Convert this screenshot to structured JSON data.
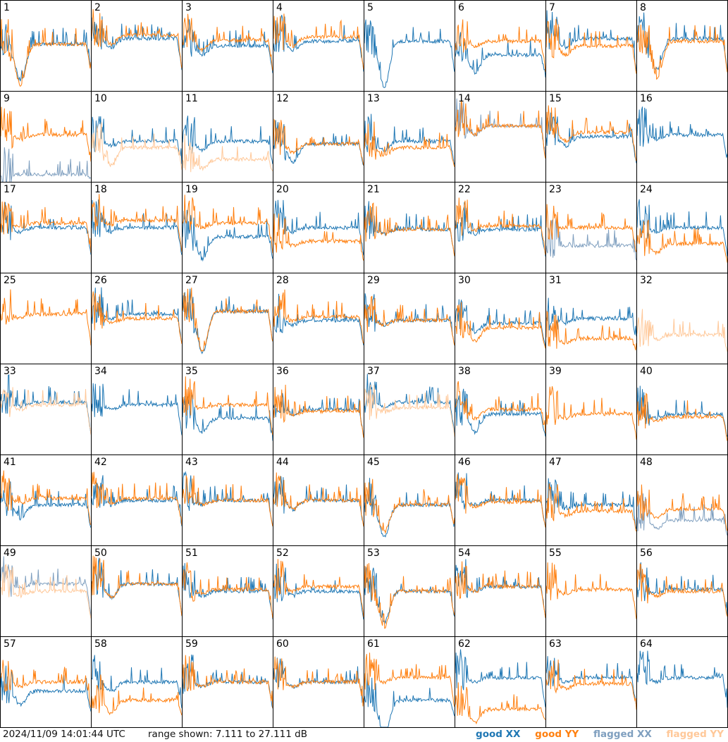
{
  "footer": {
    "timestamp": "2024/11/09 14:01:44 UTC",
    "range_text": "range shown: 7.111 to 27.111 dB"
  },
  "legend": [
    {
      "label": "good XX",
      "color": "#1f77b4"
    },
    {
      "label": "good YY",
      "color": "#ff7f0e"
    },
    {
      "label": "flagged XX",
      "color": "#7f9fbf"
    },
    {
      "label": "flagged YY",
      "color": "#ffc899"
    }
  ],
  "chart_data": {
    "type": "line",
    "y_range_db": [
      7.111,
      27.111
    ],
    "grid": false,
    "legend_placement": "bottom-right",
    "panels": [
      {
        "id": "1",
        "xx": {
          "level": 0.52,
          "dip": 0.4,
          "status": "good"
        },
        "yy": {
          "level": 0.52,
          "dip": 0.45,
          "status": "good"
        }
      },
      {
        "id": "2",
        "xx": {
          "level": 0.58,
          "dip": 0.1,
          "status": "good"
        },
        "yy": {
          "level": 0.62,
          "dip": 0.1,
          "status": "good"
        }
      },
      {
        "id": "3",
        "xx": {
          "level": 0.5,
          "dip": 0.1,
          "status": "good"
        },
        "yy": {
          "level": 0.56,
          "dip": 0.1,
          "status": "good"
        }
      },
      {
        "id": "4",
        "xx": {
          "level": 0.55,
          "dip": 0.1,
          "status": "good"
        },
        "yy": {
          "level": 0.6,
          "dip": 0.1,
          "status": "good"
        }
      },
      {
        "id": "5",
        "xx": {
          "level": 0.55,
          "dip": 0.5,
          "status": "good"
        },
        "yy": {
          "level": 0.0,
          "dip": 0.0,
          "status": "flagged"
        }
      },
      {
        "id": "6",
        "xx": {
          "level": 0.4,
          "dip": 0.2,
          "status": "good"
        },
        "yy": {
          "level": 0.55,
          "dip": 0.05,
          "status": "good"
        }
      },
      {
        "id": "7",
        "xx": {
          "level": 0.58,
          "dip": 0.1,
          "status": "good"
        },
        "yy": {
          "level": 0.5,
          "dip": 0.1,
          "status": "good"
        }
      },
      {
        "id": "8",
        "xx": {
          "level": 0.58,
          "dip": 0.35,
          "status": "good"
        },
        "yy": {
          "level": 0.55,
          "dip": 0.4,
          "status": "good"
        }
      },
      {
        "id": "9",
        "xx": {
          "level": 0.08,
          "dip": 0.0,
          "status": "flagged"
        },
        "yy": {
          "level": 0.52,
          "dip": 0.05,
          "status": "good"
        }
      },
      {
        "id": "10",
        "xx": {
          "level": 0.45,
          "dip": 0.05,
          "status": "good"
        },
        "yy": {
          "level": 0.38,
          "dip": 0.2,
          "status": "flagged"
        }
      },
      {
        "id": "11",
        "xx": {
          "level": 0.45,
          "dip": 0.1,
          "status": "good"
        },
        "yy": {
          "level": 0.25,
          "dip": 0.1,
          "status": "flagged"
        }
      },
      {
        "id": "12",
        "xx": {
          "level": 0.42,
          "dip": 0.2,
          "status": "good"
        },
        "yy": {
          "level": 0.42,
          "dip": 0.1,
          "status": "good"
        }
      },
      {
        "id": "13",
        "xx": {
          "level": 0.45,
          "dip": 0.1,
          "status": "good"
        },
        "yy": {
          "level": 0.38,
          "dip": 0.1,
          "status": "good"
        }
      },
      {
        "id": "14",
        "xx": {
          "level": 0.62,
          "dip": 0.1,
          "status": "flagged"
        },
        "yy": {
          "level": 0.62,
          "dip": 0.1,
          "status": "good"
        }
      },
      {
        "id": "15",
        "xx": {
          "level": 0.5,
          "dip": 0.1,
          "status": "good"
        },
        "yy": {
          "level": 0.55,
          "dip": 0.1,
          "status": "good"
        }
      },
      {
        "id": "16",
        "xx": {
          "level": 0.52,
          "dip": 0.05,
          "status": "good"
        },
        "yy": {
          "level": 0.0,
          "dip": 0.0,
          "status": "flagged"
        }
      },
      {
        "id": "17",
        "xx": {
          "level": 0.5,
          "dip": 0.05,
          "status": "good"
        },
        "yy": {
          "level": 0.55,
          "dip": 0.05,
          "status": "good"
        }
      },
      {
        "id": "18",
        "xx": {
          "level": 0.5,
          "dip": 0.05,
          "status": "good"
        },
        "yy": {
          "level": 0.58,
          "dip": 0.05,
          "status": "good"
        }
      },
      {
        "id": "19",
        "xx": {
          "level": 0.4,
          "dip": 0.25,
          "status": "good"
        },
        "yy": {
          "level": 0.55,
          "dip": 0.05,
          "status": "good"
        }
      },
      {
        "id": "20",
        "xx": {
          "level": 0.5,
          "dip": 0.05,
          "status": "good"
        },
        "yy": {
          "level": 0.35,
          "dip": 0.05,
          "status": "good"
        }
      },
      {
        "id": "21",
        "xx": {
          "level": 0.48,
          "dip": 0.05,
          "status": "good"
        },
        "yy": {
          "level": 0.48,
          "dip": 0.05,
          "status": "good"
        }
      },
      {
        "id": "22",
        "xx": {
          "level": 0.48,
          "dip": 0.05,
          "status": "good"
        },
        "yy": {
          "level": 0.52,
          "dip": 0.05,
          "status": "good"
        }
      },
      {
        "id": "23",
        "xx": {
          "level": 0.3,
          "dip": 0.0,
          "status": "flagged"
        },
        "yy": {
          "level": 0.5,
          "dip": 0.0,
          "status": "good"
        }
      },
      {
        "id": "24",
        "xx": {
          "level": 0.5,
          "dip": 0.05,
          "status": "good"
        },
        "yy": {
          "level": 0.32,
          "dip": 0.1,
          "status": "good"
        }
      },
      {
        "id": "25",
        "xx": {
          "level": 0.0,
          "dip": 0.0,
          "status": "none"
        },
        "yy": {
          "level": 0.55,
          "dip": 0.05,
          "status": "good"
        }
      },
      {
        "id": "26",
        "xx": {
          "level": 0.55,
          "dip": 0.05,
          "status": "good"
        },
        "yy": {
          "level": 0.5,
          "dip": 0.05,
          "status": "good"
        }
      },
      {
        "id": "27",
        "xx": {
          "level": 0.58,
          "dip": 0.45,
          "status": "good"
        },
        "yy": {
          "level": 0.58,
          "dip": 0.45,
          "status": "good"
        }
      },
      {
        "id": "28",
        "xx": {
          "level": 0.48,
          "dip": 0.05,
          "status": "good"
        },
        "yy": {
          "level": 0.52,
          "dip": 0.05,
          "status": "good"
        }
      },
      {
        "id": "29",
        "xx": {
          "level": 0.48,
          "dip": 0.05,
          "status": "good"
        },
        "yy": {
          "level": 0.48,
          "dip": 0.05,
          "status": "good"
        }
      },
      {
        "id": "30",
        "xx": {
          "level": 0.45,
          "dip": 0.1,
          "status": "good"
        },
        "yy": {
          "level": 0.4,
          "dip": 0.15,
          "status": "good"
        }
      },
      {
        "id": "31",
        "xx": {
          "level": 0.5,
          "dip": 0.05,
          "status": "good"
        },
        "yy": {
          "level": 0.28,
          "dip": 0.05,
          "status": "good"
        }
      },
      {
        "id": "32",
        "xx": {
          "level": 0.0,
          "dip": 0.0,
          "status": "none"
        },
        "yy": {
          "level": 0.32,
          "dip": 0.05,
          "status": "flagged"
        }
      },
      {
        "id": "33",
        "xx": {
          "level": 0.58,
          "dip": 0.05,
          "status": "good"
        },
        "yy": {
          "level": 0.55,
          "dip": 0.05,
          "status": "flagged"
        }
      },
      {
        "id": "34",
        "xx": {
          "level": 0.55,
          "dip": 0.05,
          "status": "good"
        },
        "yy": {
          "level": 0.0,
          "dip": 0.0,
          "status": "good"
        }
      },
      {
        "id": "35",
        "xx": {
          "level": 0.4,
          "dip": 0.15,
          "status": "good"
        },
        "yy": {
          "level": 0.55,
          "dip": 0.05,
          "status": "good"
        }
      },
      {
        "id": "36",
        "xx": {
          "level": 0.5,
          "dip": 0.05,
          "status": "good"
        },
        "yy": {
          "level": 0.48,
          "dip": 0.05,
          "status": "good"
        }
      },
      {
        "id": "37",
        "xx": {
          "level": 0.58,
          "dip": 0.05,
          "status": "good"
        },
        "yy": {
          "level": 0.52,
          "dip": 0.05,
          "status": "flagged"
        }
      },
      {
        "id": "38",
        "xx": {
          "level": 0.45,
          "dip": 0.2,
          "status": "good"
        },
        "yy": {
          "level": 0.5,
          "dip": 0.1,
          "status": "good"
        }
      },
      {
        "id": "39",
        "xx": {
          "level": 0.0,
          "dip": 0.0,
          "status": "good"
        },
        "yy": {
          "level": 0.45,
          "dip": 0.05,
          "status": "good"
        }
      },
      {
        "id": "40",
        "xx": {
          "level": 0.45,
          "dip": 0.05,
          "status": "good"
        },
        "yy": {
          "level": 0.42,
          "dip": 0.05,
          "status": "good"
        }
      },
      {
        "id": "41",
        "xx": {
          "level": 0.45,
          "dip": 0.15,
          "status": "good"
        },
        "yy": {
          "level": 0.52,
          "dip": 0.05,
          "status": "good"
        }
      },
      {
        "id": "42",
        "xx": {
          "level": 0.5,
          "dip": 0.05,
          "status": "good"
        },
        "yy": {
          "level": 0.52,
          "dip": 0.05,
          "status": "good"
        }
      },
      {
        "id": "43",
        "xx": {
          "level": 0.5,
          "dip": 0.05,
          "status": "good"
        },
        "yy": {
          "level": 0.5,
          "dip": 0.05,
          "status": "good"
        }
      },
      {
        "id": "44",
        "xx": {
          "level": 0.5,
          "dip": 0.1,
          "status": "good"
        },
        "yy": {
          "level": 0.5,
          "dip": 0.1,
          "status": "good"
        }
      },
      {
        "id": "45",
        "xx": {
          "level": 0.45,
          "dip": 0.35,
          "status": "good"
        },
        "yy": {
          "level": 0.45,
          "dip": 0.3,
          "status": "good"
        }
      },
      {
        "id": "46",
        "xx": {
          "level": 0.5,
          "dip": 0.05,
          "status": "good"
        },
        "yy": {
          "level": 0.48,
          "dip": 0.05,
          "status": "good"
        }
      },
      {
        "id": "47",
        "xx": {
          "level": 0.45,
          "dip": 0.05,
          "status": "good"
        },
        "yy": {
          "level": 0.38,
          "dip": 0.05,
          "status": "good"
        }
      },
      {
        "id": "48",
        "xx": {
          "level": 0.28,
          "dip": 0.1,
          "status": "flagged"
        },
        "yy": {
          "level": 0.4,
          "dip": 0.1,
          "status": "good"
        }
      },
      {
        "id": "49",
        "xx": {
          "level": 0.58,
          "dip": 0.05,
          "status": "flagged"
        },
        "yy": {
          "level": 0.5,
          "dip": 0.05,
          "status": "flagged"
        }
      },
      {
        "id": "50",
        "xx": {
          "level": 0.58,
          "dip": 0.15,
          "status": "good"
        },
        "yy": {
          "level": 0.58,
          "dip": 0.15,
          "status": "good"
        }
      },
      {
        "id": "51",
        "xx": {
          "level": 0.5,
          "dip": 0.05,
          "status": "good"
        },
        "yy": {
          "level": 0.52,
          "dip": 0.05,
          "status": "good"
        }
      },
      {
        "id": "52",
        "xx": {
          "level": 0.5,
          "dip": 0.05,
          "status": "good"
        },
        "yy": {
          "level": 0.55,
          "dip": 0.05,
          "status": "good"
        }
      },
      {
        "id": "53",
        "xx": {
          "level": 0.5,
          "dip": 0.35,
          "status": "good"
        },
        "yy": {
          "level": 0.5,
          "dip": 0.4,
          "status": "good"
        }
      },
      {
        "id": "54",
        "xx": {
          "level": 0.55,
          "dip": 0.05,
          "status": "good"
        },
        "yy": {
          "level": 0.55,
          "dip": 0.05,
          "status": "good"
        }
      },
      {
        "id": "55",
        "xx": {
          "level": 0.0,
          "dip": 0.0,
          "status": "good"
        },
        "yy": {
          "level": 0.52,
          "dip": 0.05,
          "status": "good"
        }
      },
      {
        "id": "56",
        "xx": {
          "level": 0.52,
          "dip": 0.05,
          "status": "good"
        },
        "yy": {
          "level": 0.5,
          "dip": 0.05,
          "status": "good"
        }
      },
      {
        "id": "57",
        "xx": {
          "level": 0.4,
          "dip": 0.15,
          "status": "good"
        },
        "yy": {
          "level": 0.5,
          "dip": 0.05,
          "status": "good"
        }
      },
      {
        "id": "58",
        "xx": {
          "level": 0.5,
          "dip": 0.1,
          "status": "good"
        },
        "yy": {
          "level": 0.3,
          "dip": 0.15,
          "status": "good"
        }
      },
      {
        "id": "59",
        "xx": {
          "level": 0.5,
          "dip": 0.05,
          "status": "good"
        },
        "yy": {
          "level": 0.5,
          "dip": 0.05,
          "status": "good"
        }
      },
      {
        "id": "60",
        "xx": {
          "level": 0.5,
          "dip": 0.05,
          "status": "good"
        },
        "yy": {
          "level": 0.5,
          "dip": 0.05,
          "status": "good"
        }
      },
      {
        "id": "61",
        "xx": {
          "level": 0.3,
          "dip": 0.4,
          "status": "good"
        },
        "yy": {
          "level": 0.55,
          "dip": 0.05,
          "status": "good"
        }
      },
      {
        "id": "62",
        "xx": {
          "level": 0.55,
          "dip": 0.05,
          "status": "good"
        },
        "yy": {
          "level": 0.2,
          "dip": 0.15,
          "status": "good"
        }
      },
      {
        "id": "63",
        "xx": {
          "level": 0.55,
          "dip": 0.05,
          "status": "good"
        },
        "yy": {
          "level": 0.48,
          "dip": 0.05,
          "status": "good"
        }
      },
      {
        "id": "64",
        "xx": {
          "level": 0.55,
          "dip": 0.05,
          "status": "good"
        },
        "yy": {
          "level": 0.0,
          "dip": 0.0,
          "status": "flagged"
        }
      }
    ]
  }
}
